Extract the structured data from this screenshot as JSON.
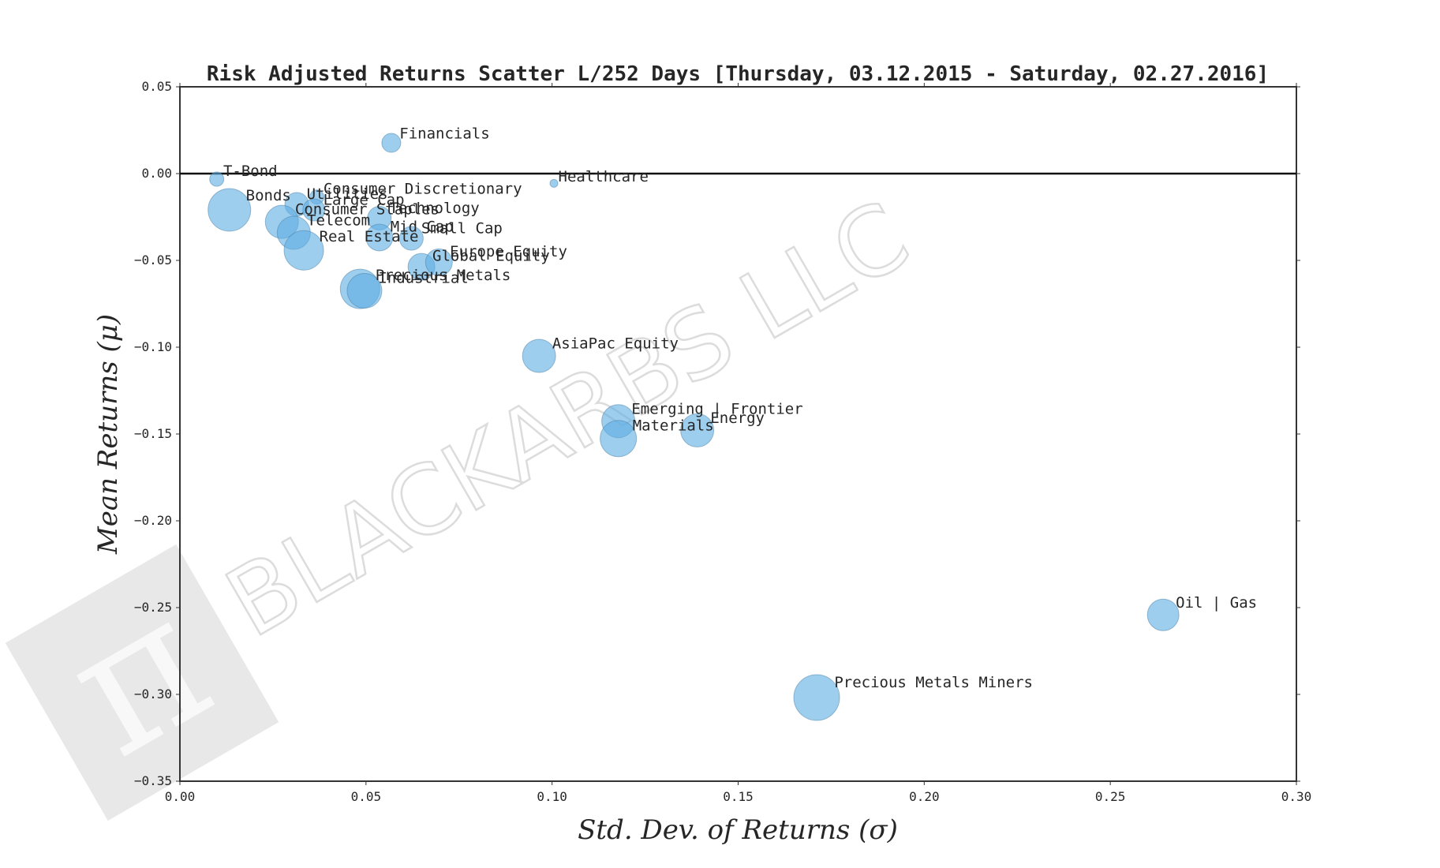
{
  "chart_data": {
    "type": "scatter",
    "title": "Risk Adjusted Returns Scatter L/252 Days [Thursday, 03.12.2015 - Saturday, 02.27.2016]",
    "xlabel": "Std. Dev. of Returns (σ)",
    "ylabel": "Mean Returns (μ)",
    "xlim": [
      0.0,
      0.3
    ],
    "ylim": [
      -0.35,
      0.05
    ],
    "xticks": [
      "0.00",
      "0.05",
      "0.10",
      "0.15",
      "0.20",
      "0.25",
      "0.30"
    ],
    "yticks": [
      "0.05",
      "0.00",
      "−0.05",
      "−0.10",
      "−0.15",
      "−0.20",
      "−0.25",
      "−0.30",
      "−0.35"
    ],
    "grid": false,
    "zero_line": true,
    "marker_color": "#5DADE2",
    "marker_alpha": 0.6,
    "points": [
      {
        "label": "T-Bond",
        "x": 0.0099,
        "y": -0.0032,
        "size": 9
      },
      {
        "label": "Bonds",
        "x": 0.0133,
        "y": -0.0209,
        "size": 27
      },
      {
        "label": "Financials",
        "x": 0.0568,
        "y": 0.0177,
        "size": 12
      },
      {
        "label": "Healthcare",
        "x": 0.1005,
        "y": -0.0056,
        "size": 5
      },
      {
        "label": "Consumer Discretionary",
        "x": 0.0368,
        "y": -0.0135,
        "size": 9
      },
      {
        "label": "Utilities",
        "x": 0.0314,
        "y": -0.0177,
        "size": 15
      },
      {
        "label": "Large Cap",
        "x": 0.036,
        "y": -0.0209,
        "size": 14
      },
      {
        "label": "Consumer Staples",
        "x": 0.0274,
        "y": -0.0278,
        "size": 21
      },
      {
        "label": "Technology",
        "x": 0.0536,
        "y": -0.0257,
        "size": 15
      },
      {
        "label": "Telecom",
        "x": 0.0306,
        "y": -0.0341,
        "size": 21
      },
      {
        "label": "Real Estate",
        "x": 0.0333,
        "y": -0.0442,
        "size": 25
      },
      {
        "label": "Mid Cap",
        "x": 0.0536,
        "y": -0.0368,
        "size": 17
      },
      {
        "label": "Small Cap",
        "x": 0.0622,
        "y": -0.0373,
        "size": 15
      },
      {
        "label": "Global Equity",
        "x": 0.0649,
        "y": -0.0537,
        "size": 17
      },
      {
        "label": "Europe Equity",
        "x": 0.0696,
        "y": -0.0511,
        "size": 17
      },
      {
        "label": "Precious Metals",
        "x": 0.0484,
        "y": -0.0664,
        "size": 25
      },
      {
        "label": "Industrial",
        "x": 0.0496,
        "y": -0.0675,
        "size": 22
      },
      {
        "label": "AsiaPac Equity",
        "x": 0.0965,
        "y": -0.105,
        "size": 21
      },
      {
        "label": "Emerging | Frontier",
        "x": 0.1178,
        "y": -0.1426,
        "size": 21
      },
      {
        "label": "Materials",
        "x": 0.1178,
        "y": -0.1526,
        "size": 23
      },
      {
        "label": "Energy",
        "x": 0.139,
        "y": -0.1479,
        "size": 21
      },
      {
        "label": "Oil | Gas",
        "x": 0.2642,
        "y": -0.2542,
        "size": 20
      },
      {
        "label": "Precious Metals Miners",
        "x": 0.1711,
        "y": -0.3018,
        "size": 29
      }
    ]
  },
  "watermark": {
    "text": "BLACKARBS LLC",
    "logo_glyph": "π"
  }
}
